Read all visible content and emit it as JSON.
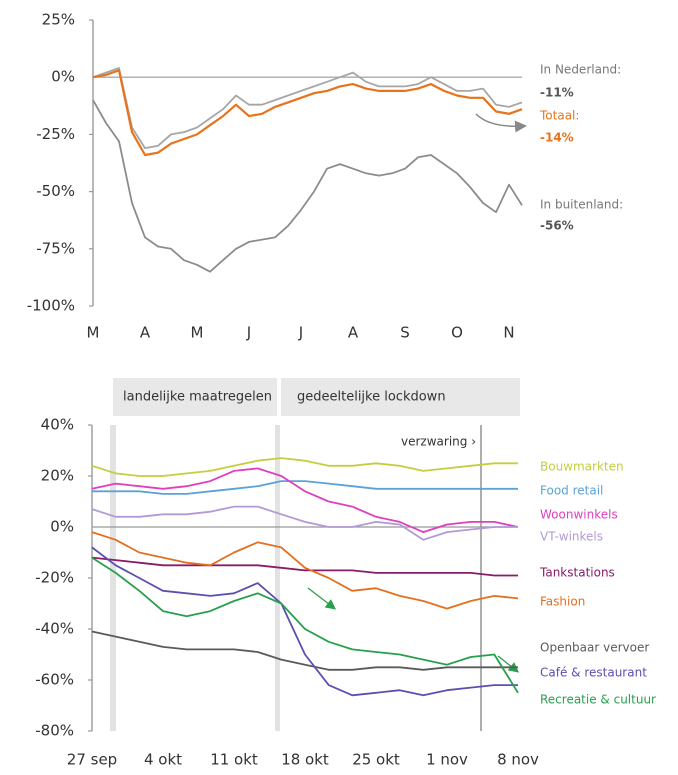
{
  "chart_data": [
    {
      "type": "line",
      "categories": [
        "M",
        null,
        null,
        null,
        "A",
        null,
        null,
        null,
        "M",
        null,
        null,
        null,
        "J",
        null,
        null,
        null,
        "J",
        null,
        null,
        null,
        "A",
        null,
        null,
        null,
        "S",
        null,
        null,
        null,
        "O",
        null,
        null,
        null,
        "N",
        null
      ],
      "ylim": [
        -100,
        25
      ],
      "yticks": [
        {
          "value": -100,
          "label": "-100%"
        },
        {
          "value": -75,
          "label": "-75%"
        },
        {
          "value": -50,
          "label": "-50%"
        },
        {
          "value": -25,
          "label": "-25%"
        },
        {
          "value": 0,
          "label": "0%"
        },
        {
          "value": 25,
          "label": "25%"
        }
      ],
      "series": [
        {
          "name": "In Nederland:",
          "end_label": "-11%",
          "color": "#a6a6a6",
          "values": [
            0,
            2,
            4,
            -22,
            -31,
            -30,
            -25,
            -24,
            -22,
            -18,
            -14,
            -8,
            -12,
            -12,
            -10,
            -8,
            -6,
            -4,
            -2,
            0,
            2,
            -2,
            -4,
            -4,
            -4,
            -3,
            0,
            -3,
            -6,
            -6,
            -5,
            -12,
            -13,
            -11
          ]
        },
        {
          "name": "Totaal:",
          "end_label": "-14%",
          "color": "#e8731c",
          "values": [
            0,
            1,
            3,
            -24,
            -34,
            -33,
            -29,
            -27,
            -25,
            -21,
            -17,
            -12,
            -17,
            -16,
            -13,
            -11,
            -9,
            -7,
            -6,
            -4,
            -3,
            -5,
            -6,
            -6,
            -6,
            -5,
            -3,
            -6,
            -8,
            -9,
            -9,
            -15,
            -16,
            -14
          ]
        },
        {
          "name": "In buitenland:",
          "end_label": "-56%",
          "color": "#8c8c8c",
          "values": [
            -10,
            -20,
            -28,
            -55,
            -70,
            -74,
            -75,
            -80,
            -82,
            -85,
            -80,
            -75,
            -72,
            -71,
            -70,
            -65,
            -58,
            -50,
            -40,
            -38,
            -40,
            -42,
            -43,
            -42,
            -40,
            -35,
            -34,
            -38,
            -42,
            -48,
            -55,
            -59,
            -47,
            -56
          ]
        }
      ]
    },
    {
      "type": "line",
      "categories": [
        "27 sep",
        null,
        null,
        "4 okt",
        null,
        null,
        "11 okt",
        null,
        null,
        "18 okt",
        null,
        null,
        "25 okt",
        null,
        null,
        "1 nov",
        null,
        null,
        "8 nov"
      ],
      "ylim": [
        -80,
        40
      ],
      "yticks": [
        {
          "value": -80,
          "label": "-80%"
        },
        {
          "value": -60,
          "label": "-60%"
        },
        {
          "value": -40,
          "label": "-40%"
        },
        {
          "value": -20,
          "label": "-20%"
        },
        {
          "value": 0,
          "label": "0%"
        },
        {
          "value": 20,
          "label": "20%"
        },
        {
          "value": 40,
          "label": "40%"
        }
      ],
      "bands": [
        {
          "label": "landelijke maatregelen"
        },
        {
          "label": "gedeeltelijke lockdown"
        }
      ],
      "annotation": "verzwaring ›",
      "series": [
        {
          "name": "Bouwmarkten",
          "color": "#c3cf3c",
          "values": [
            24,
            21,
            20,
            20,
            21,
            22,
            24,
            26,
            27,
            26,
            24,
            24,
            25,
            24,
            22,
            23,
            24,
            25,
            25
          ]
        },
        {
          "name": "Food retail",
          "color": "#5aa2d8",
          "values": [
            14,
            14,
            14,
            13,
            13,
            14,
            15,
            16,
            18,
            18,
            17,
            16,
            15,
            15,
            15,
            15,
            15,
            15,
            15
          ]
        },
        {
          "name": "Woonwinkels",
          "color": "#df3fbf",
          "values": [
            15,
            17,
            16,
            15,
            16,
            18,
            22,
            23,
            20,
            14,
            10,
            8,
            4,
            2,
            -2,
            1,
            2,
            2,
            0
          ]
        },
        {
          "name": "VT-winkels",
          "color": "#b29ad6",
          "values": [
            7,
            4,
            4,
            5,
            5,
            6,
            8,
            8,
            5,
            2,
            0,
            0,
            2,
            1,
            -5,
            -2,
            -1,
            0,
            0
          ]
        },
        {
          "name": "Tankstations",
          "color": "#8a1a6a",
          "values": [
            -12,
            -13,
            -14,
            -15,
            -15,
            -15,
            -15,
            -15,
            -16,
            -17,
            -17,
            -17,
            -18,
            -18,
            -18,
            -18,
            -18,
            -19,
            -19
          ]
        },
        {
          "name": "Fashion",
          "color": "#e2701f",
          "values": [
            -2,
            -5,
            -10,
            -12,
            -14,
            -15,
            -10,
            -6,
            -8,
            -16,
            -20,
            -25,
            -24,
            -27,
            -29,
            -32,
            -29,
            -27,
            -28
          ]
        },
        {
          "name": "Openbaar vervoer",
          "color": "#5a5a5a",
          "values": [
            -41,
            -43,
            -45,
            -47,
            -48,
            -48,
            -48,
            -49,
            -52,
            -54,
            -56,
            -56,
            -55,
            -55,
            -56,
            -55,
            -55,
            -55,
            -55
          ]
        },
        {
          "name": "Café & restaurant",
          "color": "#5a50b0",
          "values": [
            -8,
            -15,
            -20,
            -25,
            -26,
            -27,
            -26,
            -22,
            -30,
            -50,
            -62,
            -66,
            -65,
            -64,
            -66,
            -64,
            -63,
            -62,
            -62
          ]
        },
        {
          "name": "Recreatie & cultuur",
          "color": "#27a04e",
          "values": [
            -12,
            -18,
            -25,
            -33,
            -35,
            -33,
            -29,
            -26,
            -30,
            -40,
            -45,
            -48,
            -49,
            -50,
            -52,
            -54,
            -51,
            -50,
            -65
          ]
        }
      ]
    }
  ]
}
